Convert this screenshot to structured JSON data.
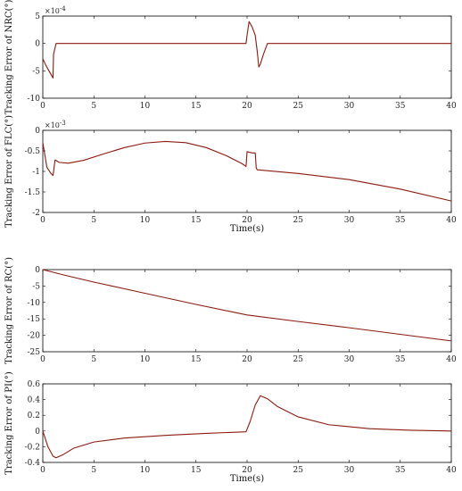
{
  "chart_data": [
    {
      "type": "line",
      "ylabel": "Tracking Error of NRC(°)",
      "xlabel": "",
      "multiplier": "×10",
      "multiplier_exp": "-4",
      "xlim": [
        0,
        40
      ],
      "ylim": [
        -10,
        5
      ],
      "xticks": [
        "0",
        "5",
        "10",
        "15",
        "20",
        "25",
        "30",
        "35",
        "40"
      ],
      "yticks": [
        "5",
        "0",
        "-5",
        "-10"
      ],
      "ytick_values": [
        5,
        0,
        -5,
        -10
      ],
      "line_color": "#8b1a0f",
      "series": [
        {
          "x": [
            0,
            0.3,
            0.6,
            1.0,
            1.05,
            1.3,
            1.6,
            19.9,
            20.0,
            20.2,
            20.5,
            20.8,
            21.0,
            21.15,
            21.3,
            21.6,
            22.0,
            40
          ],
          "y": [
            -2.8,
            -4.0,
            -5.0,
            -6.3,
            -2.0,
            0,
            0,
            0,
            1.5,
            4.0,
            3.0,
            1.5,
            -1.5,
            -4.3,
            -3.8,
            -2.0,
            0,
            0
          ]
        }
      ]
    },
    {
      "type": "line",
      "ylabel": "Tracking Error of FLC(°)",
      "xlabel": "Time(s)",
      "multiplier": "×10",
      "multiplier_exp": "-3",
      "xlim": [
        0,
        40
      ],
      "ylim": [
        -2,
        0
      ],
      "xticks": [
        "0",
        "5",
        "10",
        "15",
        "20",
        "25",
        "30",
        "35",
        "40"
      ],
      "yticks": [
        "0",
        "-0.5",
        "-1",
        "-1.5",
        "-2"
      ],
      "ytick_values": [
        0,
        -0.5,
        -1,
        -1.5,
        -2
      ],
      "line_color": "#8b1a0f",
      "series": [
        {
          "x": [
            0,
            0.4,
            0.8,
            1.0,
            1.2,
            1.6,
            2.5,
            4,
            6,
            8,
            10,
            12,
            14,
            16,
            18,
            19.5,
            19.9,
            20.0,
            20.5,
            20.8,
            20.9,
            21.0,
            25,
            30,
            35,
            40
          ],
          "y": [
            -0.3,
            -0.9,
            -1.05,
            -1.1,
            -0.72,
            -0.78,
            -0.8,
            -0.73,
            -0.57,
            -0.42,
            -0.31,
            -0.27,
            -0.3,
            -0.42,
            -0.62,
            -0.81,
            -0.88,
            -0.52,
            -0.55,
            -0.55,
            -0.92,
            -0.96,
            -1.05,
            -1.2,
            -1.43,
            -1.72
          ]
        }
      ]
    },
    {
      "type": "line",
      "ylabel": "Tracking Error of RC(°)",
      "xlabel": "",
      "xlim": [
        0,
        40
      ],
      "ylim": [
        -25,
        0
      ],
      "xticks": [
        "0",
        "5",
        "10",
        "15",
        "20",
        "25",
        "30",
        "35",
        "40"
      ],
      "yticks": [
        "0",
        "-5",
        "-10",
        "-15",
        "-20",
        "-25"
      ],
      "ytick_values": [
        0,
        -5,
        -10,
        -15,
        -20,
        -25
      ],
      "line_color": "#8b1a0f",
      "series": [
        {
          "x": [
            0,
            2,
            5,
            10,
            15,
            20,
            25,
            30,
            35,
            40
          ],
          "y": [
            0,
            -1.6,
            -3.8,
            -7.2,
            -10.6,
            -13.8,
            -15.8,
            -17.7,
            -19.7,
            -21.7
          ]
        }
      ]
    },
    {
      "type": "line",
      "ylabel": "Tracking Error of PI(°)",
      "xlabel": "Time(s)",
      "xlim": [
        0,
        40
      ],
      "ylim": [
        -0.4,
        0.6
      ],
      "xticks": [
        "0",
        "5",
        "10",
        "15",
        "20",
        "25",
        "30",
        "35",
        "40"
      ],
      "yticks": [
        "0.6",
        "0.4",
        "0.2",
        "0",
        "-0.2",
        "-0.4"
      ],
      "ytick_values": [
        0.6,
        0.4,
        0.2,
        0,
        -0.2,
        -0.4
      ],
      "line_color": "#8b1a0f",
      "series": [
        {
          "x": [
            0,
            0.5,
            1.0,
            1.3,
            2,
            3,
            5,
            8,
            12,
            16,
            19.9,
            20.3,
            20.8,
            21.3,
            22,
            23,
            25,
            28,
            32,
            36,
            40
          ],
          "y": [
            0,
            -0.2,
            -0.32,
            -0.34,
            -0.3,
            -0.22,
            -0.14,
            -0.09,
            -0.055,
            -0.03,
            -0.01,
            0.12,
            0.33,
            0.45,
            0.41,
            0.31,
            0.18,
            0.08,
            0.03,
            0.01,
            0.0
          ]
        }
      ]
    }
  ]
}
